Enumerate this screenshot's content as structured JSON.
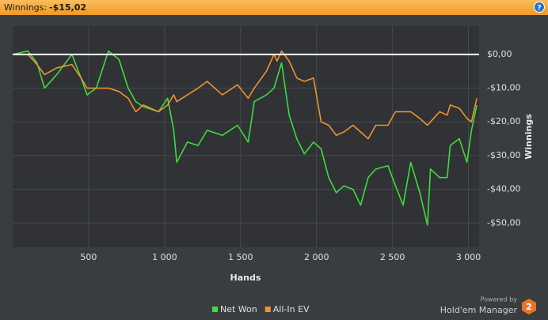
{
  "chart_data": {
    "type": "line",
    "title": "Winnings:",
    "summary": {
      "value": -15.02,
      "label": "-$15,02"
    },
    "x_label": "Hands",
    "y_label": "Winnings",
    "x": [
      0,
      100,
      160,
      210,
      290,
      390,
      450,
      490,
      550,
      630,
      700,
      760,
      810,
      860,
      960,
      1020,
      1060,
      1080,
      1150,
      1220,
      1280,
      1380,
      1480,
      1550,
      1590,
      1670,
      1720,
      1740,
      1770,
      1820,
      1870,
      1920,
      1980,
      2030,
      2080,
      2130,
      2180,
      2240,
      2290,
      2340,
      2390,
      2470,
      2520,
      2570,
      2620,
      2680,
      2730,
      2750,
      2810,
      2860,
      2880,
      2940,
      2990,
      3020,
      3055
    ],
    "series": [
      {
        "name": "Net Won",
        "color": "#3ddc3d",
        "values": [
          0,
          1,
          -2.5,
          -10,
          -6,
          0,
          -7,
          -12,
          -10,
          1,
          -1.5,
          -10,
          -14,
          -15.5,
          -17,
          -13,
          -22.5,
          -32,
          -26,
          -27,
          -22.5,
          -24,
          -21,
          -26,
          -14,
          -12,
          -10,
          -7,
          -2.5,
          -18,
          -25,
          -29.5,
          -26,
          -28,
          -36.5,
          -41,
          -39,
          -40,
          -44.7,
          -36.5,
          -34,
          -33,
          -39,
          -44.7,
          -32,
          -41,
          -50.6,
          -34,
          -36.5,
          -36.5,
          -27,
          -25,
          -32,
          -22.5,
          -15.02
        ]
      },
      {
        "name": "All-In EV",
        "color": "#f0922e",
        "values": [
          0,
          0,
          -3,
          -6,
          -4,
          -3,
          -7,
          -10,
          -10,
          -10,
          -11,
          -13,
          -17,
          -15,
          -17,
          -15,
          -12,
          -14,
          -12,
          -10,
          -8,
          -12,
          -9,
          -13,
          -10,
          -5,
          0,
          -2,
          1,
          -2,
          -7,
          -8,
          -7,
          -20,
          -21,
          -24,
          -23,
          -21,
          -23,
          -25,
          -21,
          -21,
          -17,
          -17,
          -17,
          -19,
          -21,
          -20,
          -17,
          -18,
          -15,
          -16,
          -19,
          -20,
          -13
        ]
      }
    ],
    "xlim": [
      0,
      3070
    ],
    "ylim": [
      -57.2,
      8.4
    ],
    "xticks": [
      500,
      {
        "value": 1000,
        "label": "1 000"
      },
      {
        "value": 1500,
        "label": "1 500"
      },
      {
        "value": 2000,
        "label": "2 000"
      },
      {
        "value": 2500,
        "label": "2 500"
      },
      {
        "value": 3000,
        "label": "3 000"
      }
    ],
    "yticks": [
      {
        "value": 0,
        "label": "$0,00"
      },
      {
        "value": -10,
        "label": "-$10,00"
      },
      {
        "value": -20,
        "label": "-$20,00"
      },
      {
        "value": -30,
        "label": "-$30,00"
      },
      {
        "value": -40,
        "label": "-$40,00"
      },
      {
        "value": -50,
        "label": "-$50,00"
      }
    ],
    "grid": true,
    "legend": "bottom",
    "branding": {
      "powered": "Powered by",
      "product": "Hold'em Manager",
      "version": "2"
    }
  }
}
